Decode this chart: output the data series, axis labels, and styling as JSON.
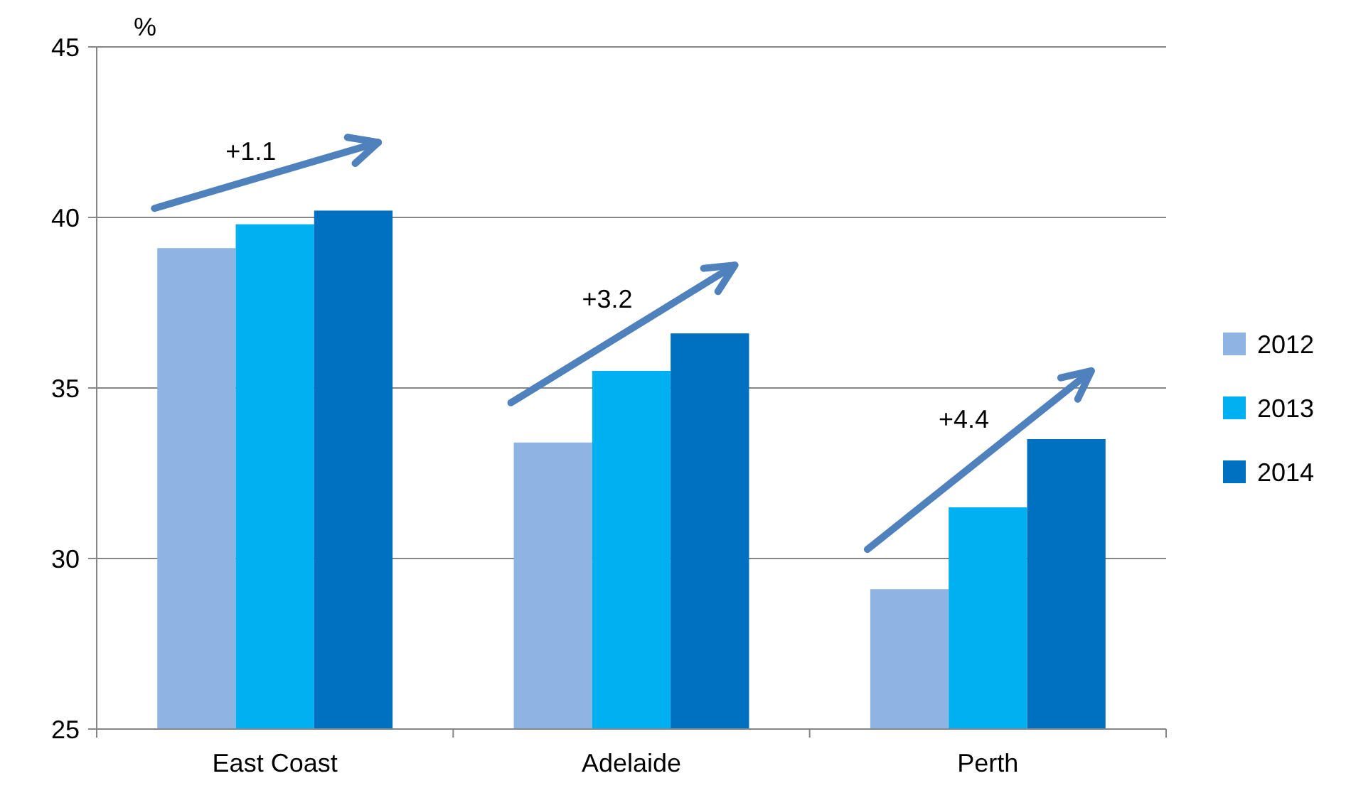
{
  "chart_data": {
    "type": "bar",
    "ylabel": "%",
    "categories": [
      "East Coast",
      "Adelaide",
      "Perth"
    ],
    "series": [
      {
        "name": "2012",
        "color": "#8eb4e3",
        "values": [
          39.1,
          33.4,
          29.1
        ]
      },
      {
        "name": "2013",
        "color": "#00b0f0",
        "values": [
          39.8,
          35.5,
          31.5
        ]
      },
      {
        "name": "2014",
        "color": "#0070c0",
        "values": [
          40.2,
          36.6,
          33.5
        ]
      }
    ],
    "ylim": [
      25,
      45
    ],
    "yticks": [
      25,
      30,
      35,
      40,
      45
    ],
    "grid": "y",
    "legend": "right",
    "annotations": [
      "+1.1",
      "+3.2",
      "+4.4"
    ]
  }
}
